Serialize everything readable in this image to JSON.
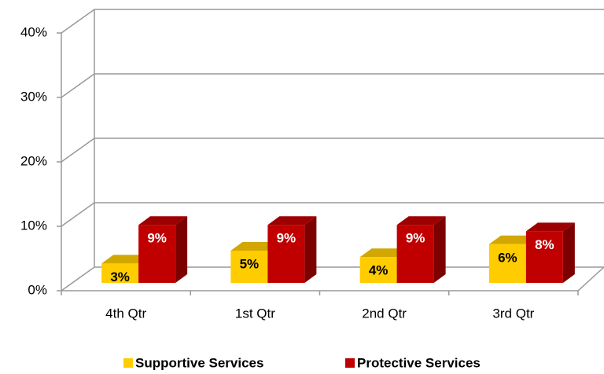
{
  "chart_data": {
    "type": "bar3d",
    "categories": [
      "4th Qtr",
      "1st Qtr",
      "2nd Qtr",
      "3rd Qtr"
    ],
    "series": [
      {
        "name": "Supportive Services",
        "color": "#ffcc00",
        "values": [
          3,
          5,
          4,
          6
        ],
        "value_labels": [
          "3%",
          "5%",
          "4%",
          "6%"
        ]
      },
      {
        "name": "Protective Services",
        "color": "#c00000",
        "values": [
          9,
          9,
          9,
          8
        ],
        "value_labels": [
          "9%",
          "9%",
          "9%",
          "8%"
        ]
      }
    ],
    "ylim": [
      0,
      40
    ],
    "yticks": [
      {
        "value": 0,
        "label": "0%"
      },
      {
        "value": 10,
        "label": "10%"
      },
      {
        "value": 20,
        "label": "20%"
      },
      {
        "value": 30,
        "label": "30%"
      },
      {
        "value": 40,
        "label": "40%"
      }
    ],
    "grid": true,
    "legend": "bottom"
  }
}
